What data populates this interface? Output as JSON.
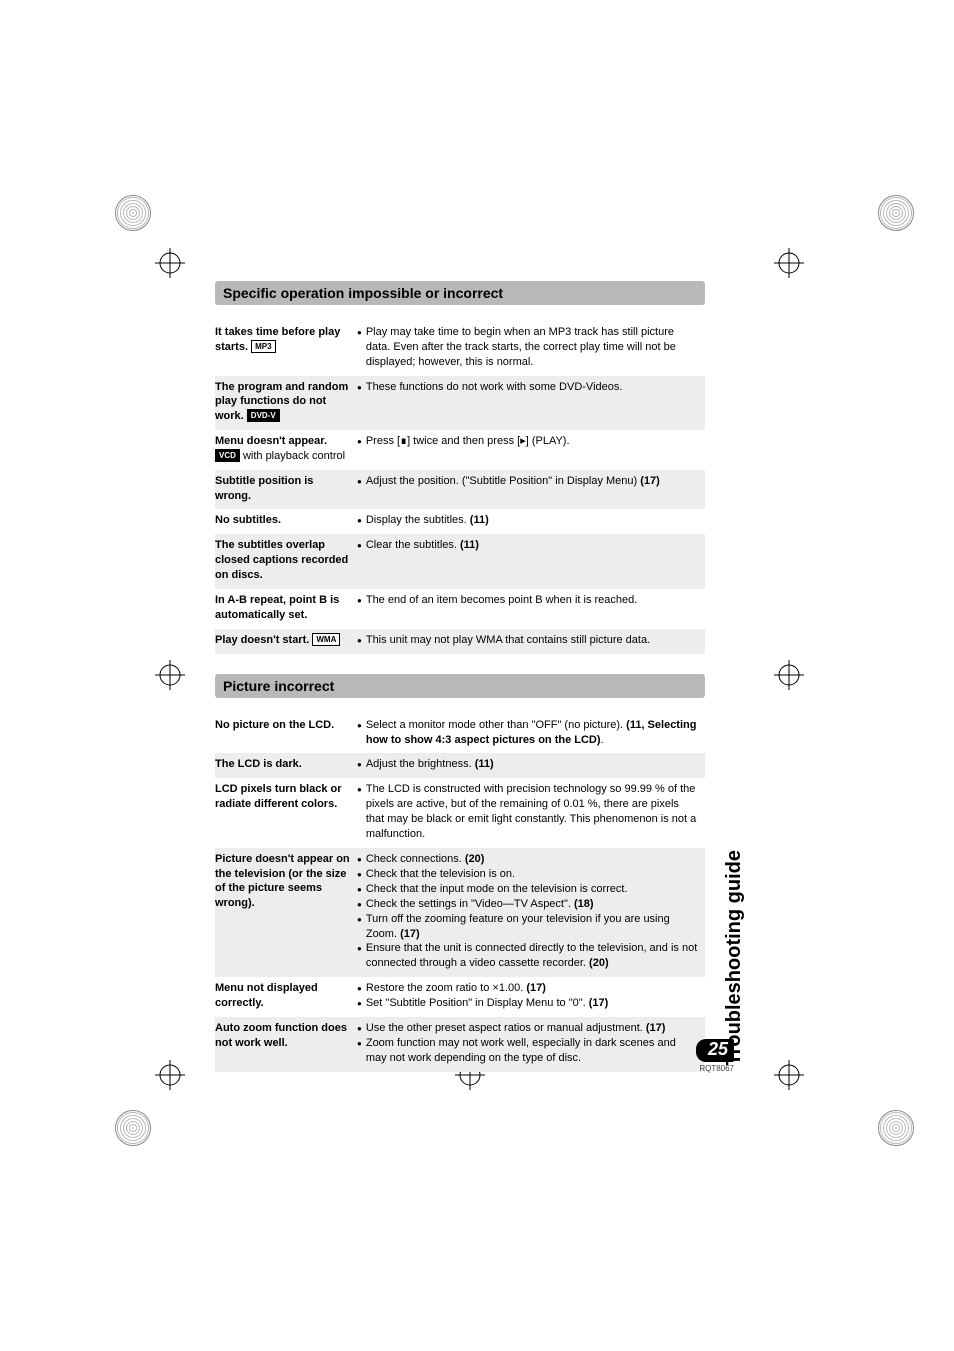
{
  "side_title": "Troubleshooting guide",
  "page_number": "25",
  "doc_code": "RQT8067",
  "sections": [
    {
      "header": "Specific operation impossible or incorrect",
      "rows": [
        {
          "shade": false,
          "problem_prefix": "It takes time before play starts.",
          "badge": "MP3",
          "badge_solid": false,
          "solutions": [
            "Play may take time to begin when an MP3 track has still picture data. Even after the track starts, the correct play time will not be displayed; however, this is normal."
          ]
        },
        {
          "shade": true,
          "problem_prefix": "The program and random play functions do not work.",
          "badge": "DVD-V",
          "badge_solid": true,
          "solutions": [
            "These functions do not work with some DVD-Videos."
          ]
        },
        {
          "shade": false,
          "problem_prefix": "Menu doesn't appear.",
          "badge": "VCD",
          "badge_solid": true,
          "problem_suffix": " with playback control",
          "solutions": [
            "Press [∎] twice and then press [▸] (PLAY)."
          ]
        },
        {
          "shade": true,
          "problem_prefix": "Subtitle position is wrong.",
          "solutions": [
            "Adjust the position. (\"Subtitle Position\" in Display Menu) <b>(17)</b>"
          ]
        },
        {
          "shade": false,
          "problem_prefix": "No subtitles.",
          "solutions": [
            "Display the subtitles. <b>(11)</b>"
          ]
        },
        {
          "shade": true,
          "problem_prefix": "The subtitles overlap closed captions recorded on discs.",
          "solutions": [
            "Clear the subtitles. <b>(11)</b>"
          ]
        },
        {
          "shade": false,
          "problem_prefix": "In A-B repeat, point B is automatically set.",
          "solutions": [
            "The end of an item becomes point B when it is reached."
          ]
        },
        {
          "shade": true,
          "problem_prefix": "Play doesn't start.",
          "badge": "WMA",
          "badge_solid": false,
          "solutions": [
            "This unit may not play WMA that contains still picture data."
          ]
        }
      ]
    },
    {
      "header": "Picture incorrect",
      "rows": [
        {
          "shade": false,
          "problem_prefix": "No picture on the LCD.",
          "solutions": [
            "Select a monitor mode other than \"OFF\" (no picture). <b>(11, Selecting how to show 4:3 aspect pictures on the LCD)</b>."
          ]
        },
        {
          "shade": true,
          "problem_prefix": "The LCD is dark.",
          "solutions": [
            "Adjust the brightness. <b>(11)</b>"
          ]
        },
        {
          "shade": false,
          "problem_prefix": "LCD pixels turn black or radiate different colors.",
          "solutions": [
            "The LCD is constructed with precision technology so 99.99 % of the pixels are active, but of the remaining of 0.01 %, there are pixels that may be black or emit light constantly. This phenomenon is not a malfunction."
          ]
        },
        {
          "shade": true,
          "problem_prefix": "Picture doesn't appear on the television (or the size of the picture seems wrong).",
          "solutions": [
            "Check connections. <b>(20)</b>",
            "Check that the television is on.",
            "Check that the input mode on the television is correct.",
            "Check the settings in \"Video—TV Aspect\". <b>(18)</b>",
            "Turn off the zooming feature on your television if you are using Zoom. <b>(17)</b>",
            "Ensure that the unit is connected directly to the television, and is not connected through a video cassette recorder. <b>(20)</b>"
          ]
        },
        {
          "shade": false,
          "problem_prefix": "Menu not displayed correctly.",
          "solutions": [
            "Restore the zoom ratio to ×1.00. <b>(17)</b>",
            "Set \"Subtitle Position\" in Display Menu to \"0\". <b>(17)</b>"
          ]
        },
        {
          "shade": true,
          "problem_prefix": "Auto zoom function does not work well.",
          "solutions": [
            "Use the other preset aspect ratios or manual adjustment. <b>(17)</b>",
            "Zoom function may not work well, especially in dark scenes and may not work depending on the type of disc."
          ]
        }
      ]
    }
  ]
}
